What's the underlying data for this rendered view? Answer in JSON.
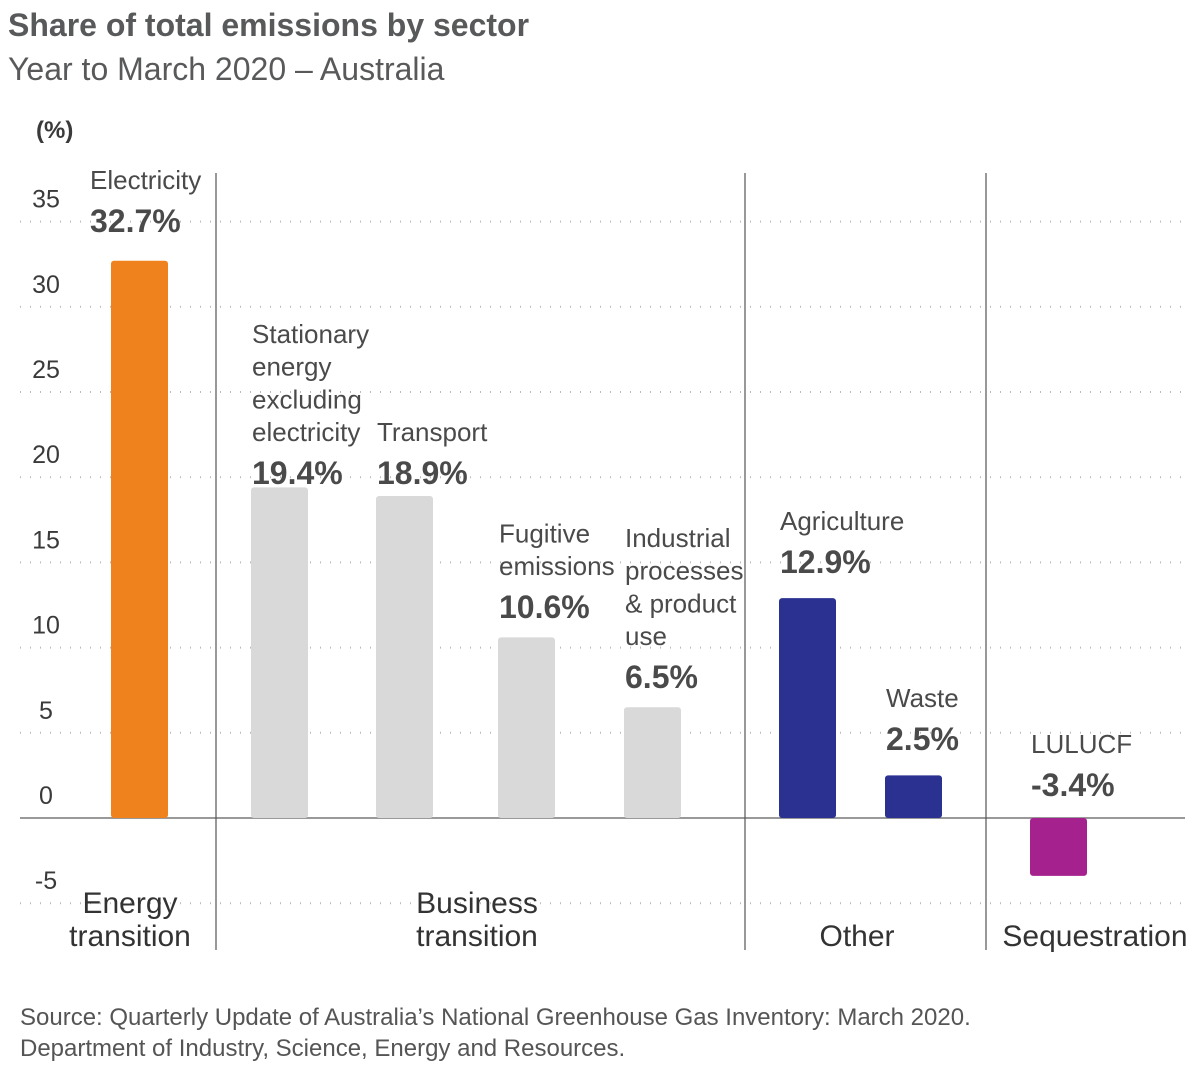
{
  "title": "Share of total emissions by sector",
  "subtitle": "Year to March 2020 – Australia",
  "source": [
    "Source: Quarterly Update of Australia’s National Greenhouse Gas Inventory: March 2020.",
    "Department of Industry, Science, Energy and Resources."
  ],
  "chart_data": {
    "type": "bar",
    "title": "Share of total emissions by sector",
    "subtitle": "Year to March 2020 – Australia",
    "ylabel": "(%)",
    "ylim": [
      -5,
      35
    ],
    "yticks": [
      -5,
      0,
      5,
      10,
      15,
      20,
      25,
      30,
      35
    ],
    "grid": true,
    "categories": [
      "Electricity",
      "Stationary energy excluding electricity",
      "Transport",
      "Fugitive emissions",
      "Industrial processes & product use",
      "Agriculture",
      "Waste",
      "LULUCF"
    ],
    "label_lines": [
      [
        "Electricity"
      ],
      [
        "Stationary",
        "energy",
        "excluding",
        "electricity"
      ],
      [
        "Transport"
      ],
      [
        "Fugitive",
        "emissions"
      ],
      [
        "Industrial",
        "processes",
        "& product",
        "use"
      ],
      [
        "Agriculture"
      ],
      [
        "Waste"
      ],
      [
        "LULUCF"
      ]
    ],
    "values": [
      32.7,
      19.4,
      18.9,
      10.6,
      6.5,
      12.9,
      2.5,
      -3.4
    ],
    "value_labels": [
      "32.7%",
      "19.4%",
      "18.9%",
      "10.6%",
      "6.5%",
      "12.9%",
      "2.5%",
      "-3.4%"
    ],
    "groups": [
      {
        "lines": [
          "Energy",
          "transition"
        ],
        "members": [
          "Electricity"
        ],
        "color": "#F0821E"
      },
      {
        "lines": [
          "Business",
          "transition"
        ],
        "members": [
          "Stationary energy excluding electricity",
          "Transport",
          "Fugitive emissions",
          "Industrial processes & product use"
        ],
        "color": "#D9D9D9"
      },
      {
        "lines": [
          "Other"
        ],
        "members": [
          "Agriculture",
          "Waste"
        ],
        "color": "#2B3190"
      },
      {
        "lines": [
          "Sequestration"
        ],
        "members": [
          "LULUCF"
        ],
        "color": "#A5218E"
      }
    ],
    "bar_colors": [
      "#F0821E",
      "#D9D9D9",
      "#D9D9D9",
      "#D9D9D9",
      "#D9D9D9",
      "#2B3190",
      "#2B3190",
      "#A5218E"
    ]
  }
}
